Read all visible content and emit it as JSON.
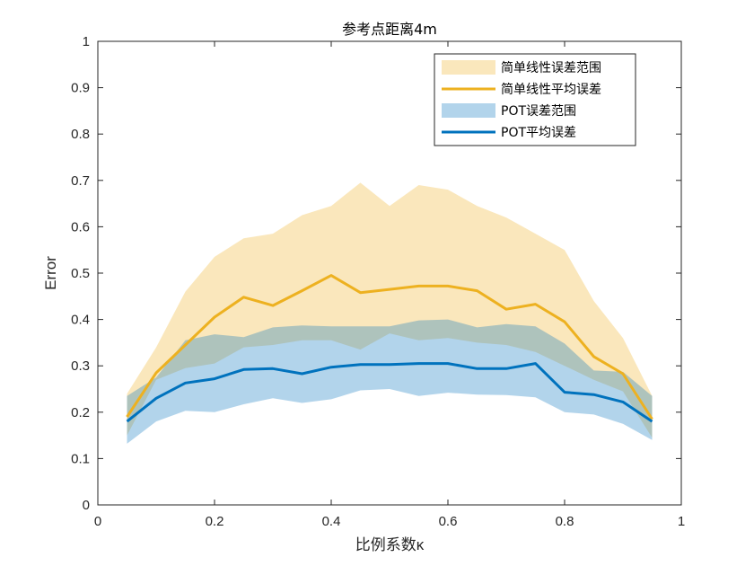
{
  "chart_data": {
    "type": "area",
    "title": "参考点距离4m",
    "xlabel": "比例系数κ",
    "ylabel": "Error",
    "xlim": [
      0,
      1
    ],
    "ylim": [
      0,
      1
    ],
    "x_ticks": [
      "0",
      "0.2",
      "0.4",
      "0.6",
      "0.8",
      "1"
    ],
    "y_ticks": [
      "0",
      "0.1",
      "0.2",
      "0.3",
      "0.4",
      "0.5",
      "0.6",
      "0.7",
      "0.8",
      "0.9",
      "1"
    ],
    "grid": false,
    "legend_position": "top-right",
    "x": [
      0.05,
      0.1,
      0.15,
      0.2,
      0.25,
      0.3,
      0.35,
      0.4,
      0.45,
      0.5,
      0.55,
      0.6,
      0.65,
      0.7,
      0.75,
      0.8,
      0.85,
      0.9,
      0.95
    ],
    "series": [
      {
        "name": "简单线性误差范围",
        "kind": "band",
        "color": "#EDB120",
        "opacity": 0.3,
        "upper": [
          0.24,
          0.34,
          0.46,
          0.535,
          0.575,
          0.585,
          0.625,
          0.645,
          0.695,
          0.645,
          0.69,
          0.68,
          0.645,
          0.62,
          0.585,
          0.55,
          0.44,
          0.36,
          0.235
        ],
        "lower": [
          0.15,
          0.27,
          0.295,
          0.305,
          0.34,
          0.345,
          0.355,
          0.355,
          0.335,
          0.37,
          0.355,
          0.36,
          0.35,
          0.345,
          0.33,
          0.3,
          0.27,
          0.245,
          0.145
        ]
      },
      {
        "name": "简单线性平均误差",
        "kind": "line",
        "color": "#EDB120",
        "values": [
          0.19,
          0.285,
          0.345,
          0.405,
          0.448,
          0.43,
          0.462,
          0.495,
          0.458,
          0.465,
          0.472,
          0.472,
          0.462,
          0.422,
          0.433,
          0.395,
          0.32,
          0.283,
          0.185
        ]
      },
      {
        "name": "POT误差范围",
        "kind": "band",
        "color": "#0072BD",
        "opacity": 0.3,
        "upper": [
          0.235,
          0.275,
          0.355,
          0.368,
          0.362,
          0.383,
          0.387,
          0.385,
          0.385,
          0.385,
          0.398,
          0.4,
          0.383,
          0.39,
          0.385,
          0.348,
          0.29,
          0.287,
          0.235
        ],
        "lower": [
          0.132,
          0.18,
          0.203,
          0.2,
          0.217,
          0.23,
          0.22,
          0.228,
          0.247,
          0.25,
          0.235,
          0.242,
          0.238,
          0.237,
          0.232,
          0.2,
          0.195,
          0.175,
          0.14
        ]
      },
      {
        "name": "POT平均误差",
        "kind": "line",
        "color": "#0072BD",
        "values": [
          0.18,
          0.23,
          0.263,
          0.272,
          0.292,
          0.294,
          0.283,
          0.297,
          0.303,
          0.303,
          0.305,
          0.305,
          0.294,
          0.294,
          0.305,
          0.243,
          0.238,
          0.222,
          0.18
        ]
      }
    ]
  }
}
